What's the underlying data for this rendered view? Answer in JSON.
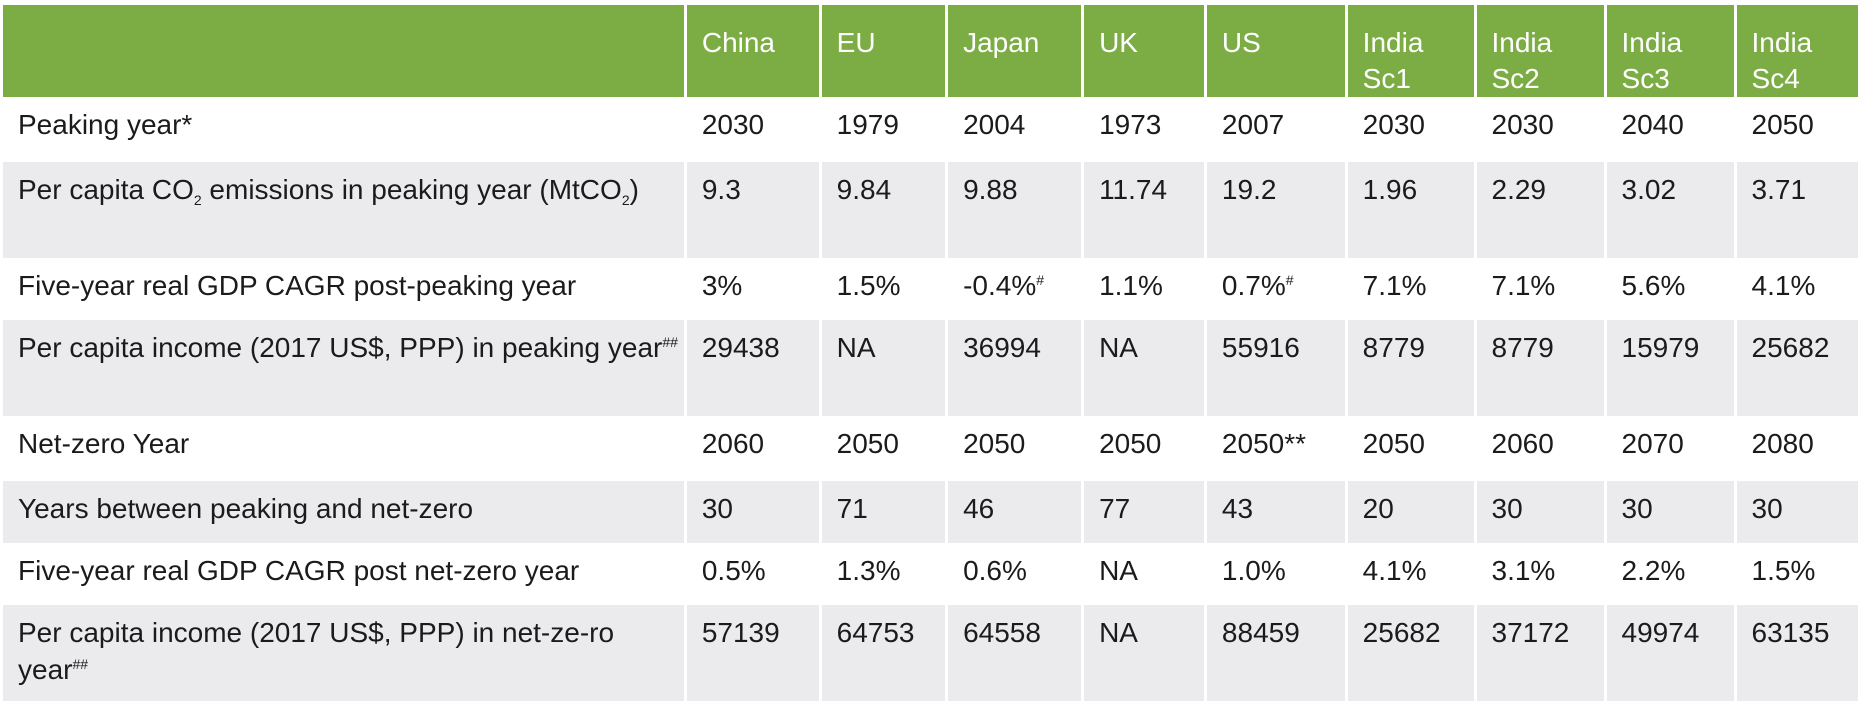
{
  "header": {
    "corner": "",
    "columns": [
      [
        "China"
      ],
      [
        "EU"
      ],
      [
        "Japan"
      ],
      [
        "UK"
      ],
      [
        "US"
      ],
      [
        "India",
        "Sc1"
      ],
      [
        "India",
        "Sc2"
      ],
      [
        "India",
        "Sc3"
      ],
      [
        "India",
        "Sc4"
      ]
    ]
  },
  "rows": [
    {
      "label": [
        {
          "t": "Peaking year*"
        }
      ],
      "values": [
        [
          "2030"
        ],
        [
          "1979"
        ],
        [
          "2004"
        ],
        [
          "1973"
        ],
        [
          "2007"
        ],
        [
          "2030"
        ],
        [
          "2030"
        ],
        [
          "2040"
        ],
        [
          "2050"
        ]
      ]
    },
    {
      "label": [
        {
          "t": "Per capita CO"
        },
        {
          "t": "2",
          "sub": true
        },
        {
          "t": " emissions in peaking year ("
        },
        {
          "t": "MtCO"
        },
        {
          "t": "2",
          "sub": true
        },
        {
          "t": ")"
        }
      ],
      "values": [
        [
          "9.3"
        ],
        [
          "9.84"
        ],
        [
          "9.88"
        ],
        [
          "11.74"
        ],
        [
          "19.2"
        ],
        [
          "1.96"
        ],
        [
          "2.29"
        ],
        [
          "3.02"
        ],
        [
          "3.71"
        ]
      ]
    },
    {
      "label": [
        {
          "t": "Five-year real GDP CAGR post-peaking year"
        }
      ],
      "values": [
        [
          "3%"
        ],
        [
          "1.5%"
        ],
        [
          "-0.4%",
          "#"
        ],
        [
          "1.1%"
        ],
        [
          "0.7%",
          "#"
        ],
        [
          "7.1%"
        ],
        [
          "7.1%"
        ],
        [
          "5.6%"
        ],
        [
          "4.1%"
        ]
      ]
    },
    {
      "label": [
        {
          "t": "Per capita income (2017 US$, PPP) in peaking year"
        },
        {
          "t": "##",
          "sup": true
        }
      ],
      "values": [
        [
          "29438"
        ],
        [
          "NA"
        ],
        [
          "36994"
        ],
        [
          "NA"
        ],
        [
          "55916"
        ],
        [
          "8779"
        ],
        [
          "8779"
        ],
        [
          "15979"
        ],
        [
          "25682"
        ]
      ]
    },
    {
      "label": [
        {
          "t": "Net-zero Year"
        }
      ],
      "values": [
        [
          "2060"
        ],
        [
          "2050"
        ],
        [
          "2050"
        ],
        [
          "2050"
        ],
        [
          "2050**"
        ],
        [
          "2050"
        ],
        [
          "2060"
        ],
        [
          "2070"
        ],
        [
          "2080"
        ]
      ]
    },
    {
      "label": [
        {
          "t": "Years between peaking and net-zero"
        }
      ],
      "values": [
        [
          "30"
        ],
        [
          "71"
        ],
        [
          "46"
        ],
        [
          "77"
        ],
        [
          "43"
        ],
        [
          "20"
        ],
        [
          "30"
        ],
        [
          "30"
        ],
        [
          "30"
        ]
      ]
    },
    {
      "label": [
        {
          "t": "Five-year real GDP CAGR post net-zero year"
        }
      ],
      "values": [
        [
          "0.5%"
        ],
        [
          "1.3%"
        ],
        [
          "0.6%"
        ],
        [
          "NA"
        ],
        [
          "1.0%"
        ],
        [
          "4.1%"
        ],
        [
          "3.1%"
        ],
        [
          "2.2%"
        ],
        [
          "1.5%"
        ]
      ]
    },
    {
      "label": [
        {
          "t": "Per capita income (2017 US$, PPP) in net-ze-ro year"
        },
        {
          "t": "##",
          "sup": true
        }
      ],
      "values": [
        [
          "57139"
        ],
        [
          "64753"
        ],
        [
          "64558"
        ],
        [
          "NA"
        ],
        [
          "88459"
        ],
        [
          "25682"
        ],
        [
          "37172"
        ],
        [
          "49974"
        ],
        [
          "63135"
        ]
      ]
    }
  ],
  "colors": {
    "header_bg": "#7cad44",
    "header_text": "#ffffff",
    "row_alt_bg": "#ebebee",
    "text": "#1b1b1b"
  }
}
